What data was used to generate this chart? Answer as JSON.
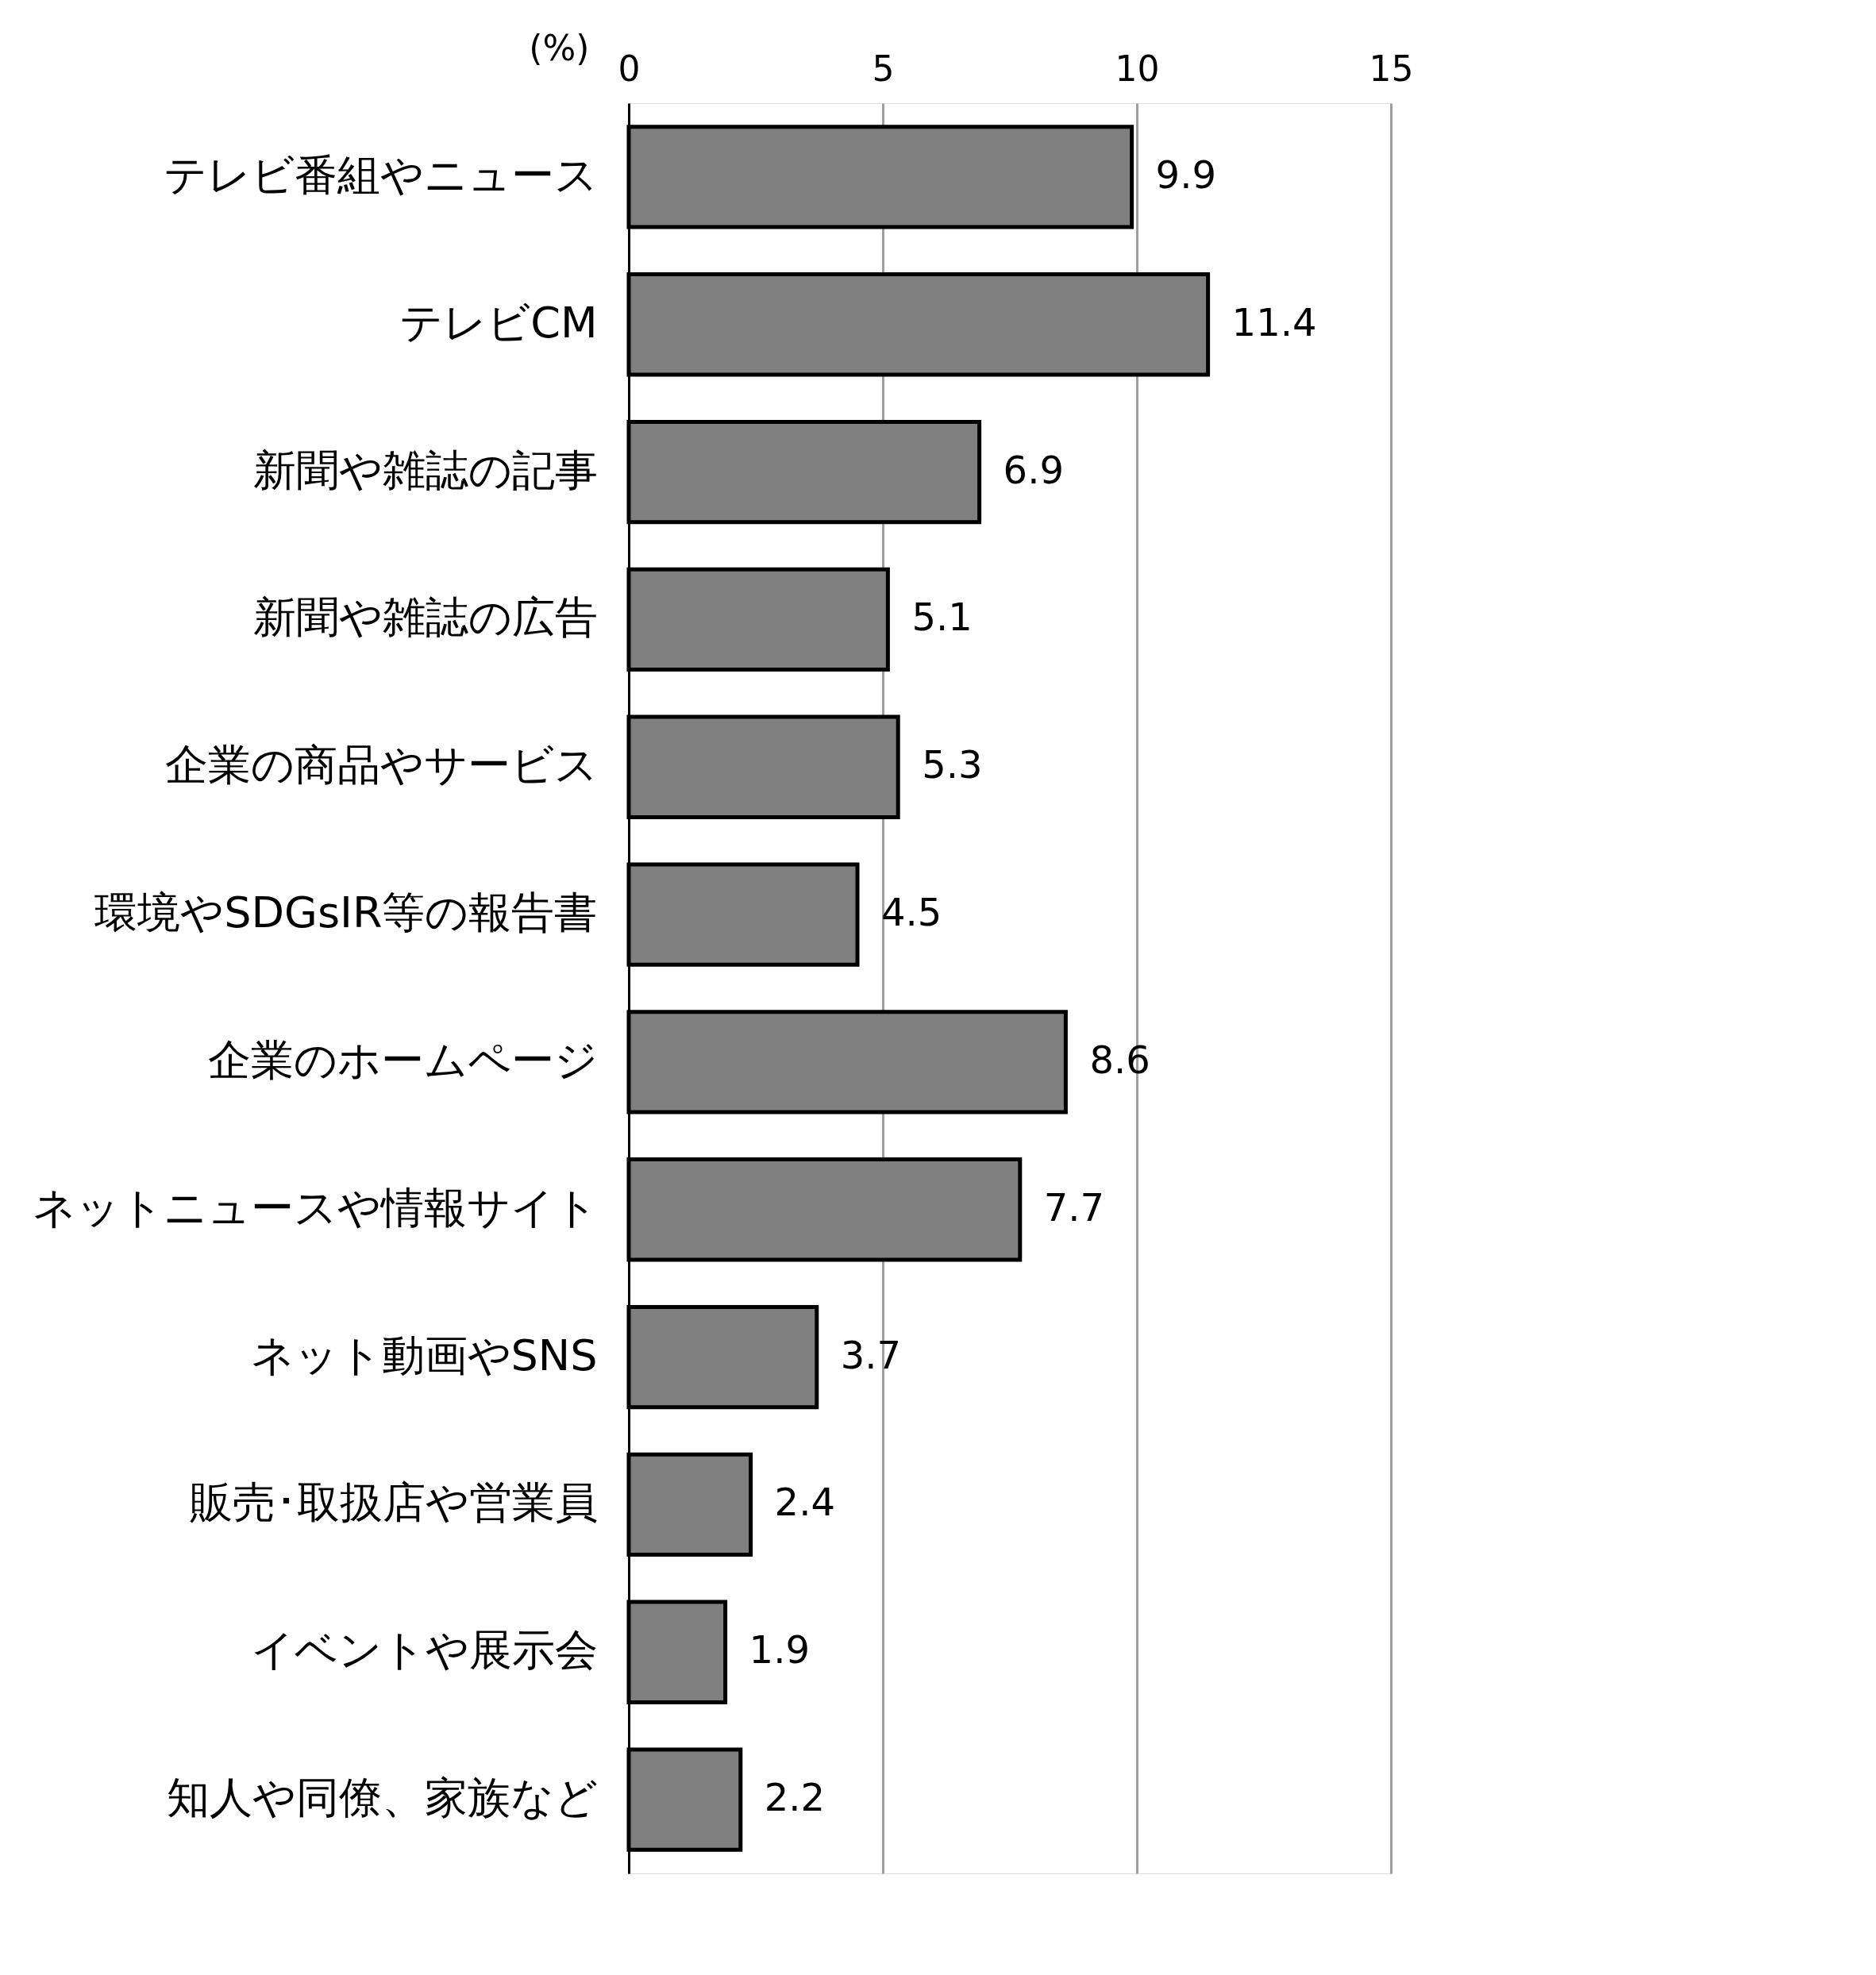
{
  "chart_data": {
    "type": "bar",
    "orientation": "horizontal",
    "xlabel": "(%)",
    "categories": [
      "テレビ番組やニュース",
      "テレビCM",
      "新聞や雑誌の記事",
      "新聞や雑誌の広告",
      "企業の商品やサービス",
      "環境やSDGsIR等の報告書",
      "企業のホームページ",
      "ネットニュースや情報サイト",
      "ネット動画やSNS",
      "販売･取扱店や営業員",
      "イベントや展示会",
      "知人や同僚、家族など"
    ],
    "values": [
      9.9,
      11.4,
      6.9,
      5.1,
      5.3,
      4.5,
      8.6,
      7.7,
      3.7,
      2.4,
      1.9,
      2.2
    ],
    "color": "#808080",
    "xlim": [
      0,
      15
    ],
    "xticks": [
      0,
      5,
      10,
      15
    ],
    "grid": "x",
    "data_labels": true
  }
}
